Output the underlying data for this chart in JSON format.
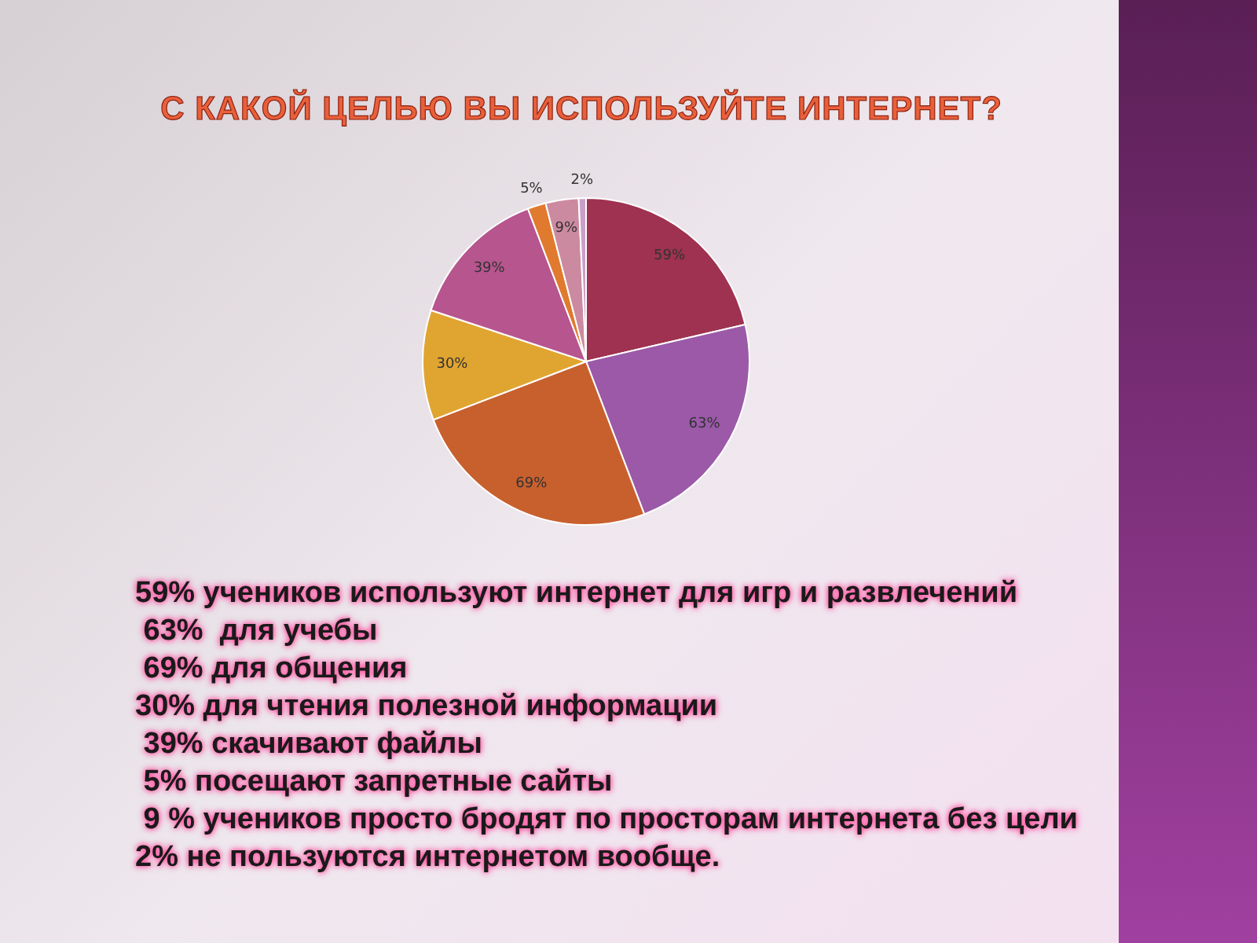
{
  "chart_data": {
    "type": "pie",
    "title": "С КАКОЙ ЦЕЛЬЮ ВЫ ИСПОЛЬЗУЙТЕ ИНТЕРНЕТ?",
    "categories": [
      null,
      null,
      null,
      null,
      null,
      null,
      null,
      null
    ],
    "values": [
      59,
      63,
      69,
      30,
      39,
      5,
      9,
      2
    ],
    "value_labels": [
      "59%",
      "63%",
      "69%",
      "30%",
      "39%",
      "5%",
      "9%",
      "2%"
    ],
    "colors": [
      "#9e3250",
      "#9b59a8",
      "#c8602e",
      "#e0a531",
      "#b7558f",
      "#e07a2e",
      "#cc8aa0",
      "#c9a0c8"
    ],
    "annotations": [
      "59% учеников используют интернет для игр и развлечений",
      " 63%  для учебы",
      " 69% для общения",
      "30% для чтения полезной информации",
      " 39% скачивают файлы",
      " 5% посещают запретные сайты",
      " 9 % учеников просто бродят по просторам интернета без цели",
      "2% не пользуются интернетом вообще."
    ]
  }
}
